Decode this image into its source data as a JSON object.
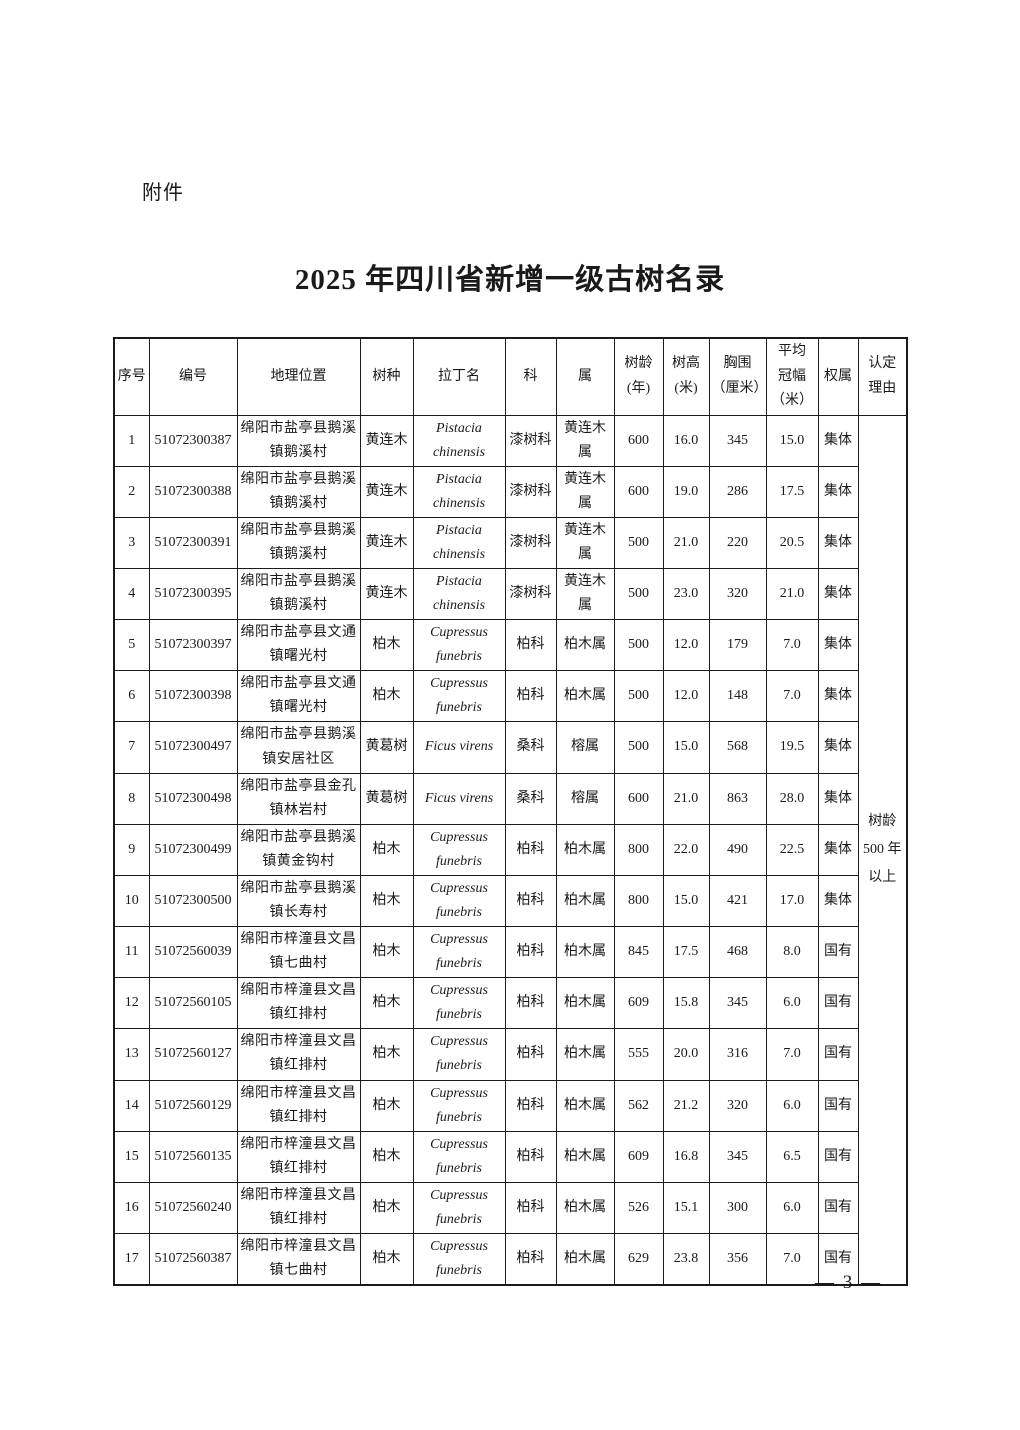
{
  "page": {
    "attachment_label": "附件",
    "title": "2025 年四川省新增一级古树名录",
    "page_number": "— 3 —"
  },
  "table": {
    "headers": {
      "seq": "序号",
      "code": "编号",
      "location": "地理位置",
      "species": "树种",
      "latin": "拉丁名",
      "family": "科",
      "genus": "属",
      "age": "树龄\n(年)",
      "height": "树高\n(米)",
      "girth": "胸围\n（厘米）",
      "crown": "平均\n冠幅\n（米）",
      "ownership": "权属",
      "reason": "认定\n理由"
    },
    "reason_merged": "树龄\n500 年\n以上",
    "rows": [
      {
        "seq": "1",
        "code": "51072300387",
        "location": "绵阳市盐亭县鹅溪镇鹅溪村",
        "species": "黄连木",
        "latin": "Pistacia chinensis",
        "family": "漆树科",
        "genus": "黄连木属",
        "age": "600",
        "height": "16.0",
        "girth": "345",
        "crown": "15.0",
        "ownership": "集体"
      },
      {
        "seq": "2",
        "code": "51072300388",
        "location": "绵阳市盐亭县鹅溪镇鹅溪村",
        "species": "黄连木",
        "latin": "Pistacia chinensis",
        "family": "漆树科",
        "genus": "黄连木属",
        "age": "600",
        "height": "19.0",
        "girth": "286",
        "crown": "17.5",
        "ownership": "集体"
      },
      {
        "seq": "3",
        "code": "51072300391",
        "location": "绵阳市盐亭县鹅溪镇鹅溪村",
        "species": "黄连木",
        "latin": "Pistacia chinensis",
        "family": "漆树科",
        "genus": "黄连木属",
        "age": "500",
        "height": "21.0",
        "girth": "220",
        "crown": "20.5",
        "ownership": "集体"
      },
      {
        "seq": "4",
        "code": "51072300395",
        "location": "绵阳市盐亭县鹅溪镇鹅溪村",
        "species": "黄连木",
        "latin": "Pistacia chinensis",
        "family": "漆树科",
        "genus": "黄连木属",
        "age": "500",
        "height": "23.0",
        "girth": "320",
        "crown": "21.0",
        "ownership": "集体"
      },
      {
        "seq": "5",
        "code": "51072300397",
        "location": "绵阳市盐亭县文通镇曙光村",
        "species": "柏木",
        "latin": "Cupressus funebris",
        "family": "柏科",
        "genus": "柏木属",
        "age": "500",
        "height": "12.0",
        "girth": "179",
        "crown": "7.0",
        "ownership": "集体"
      },
      {
        "seq": "6",
        "code": "51072300398",
        "location": "绵阳市盐亭县文通镇曙光村",
        "species": "柏木",
        "latin": "Cupressus funebris",
        "family": "柏科",
        "genus": "柏木属",
        "age": "500",
        "height": "12.0",
        "girth": "148",
        "crown": "7.0",
        "ownership": "集体"
      },
      {
        "seq": "7",
        "code": "51072300497",
        "location": "绵阳市盐亭县鹅溪镇安居社区",
        "species": "黄葛树",
        "latin": "Ficus virens",
        "family": "桑科",
        "genus": "榕属",
        "age": "500",
        "height": "15.0",
        "girth": "568",
        "crown": "19.5",
        "ownership": "集体"
      },
      {
        "seq": "8",
        "code": "51072300498",
        "location": "绵阳市盐亭县金孔镇林岩村",
        "species": "黄葛树",
        "latin": "Ficus virens",
        "family": "桑科",
        "genus": "榕属",
        "age": "600",
        "height": "21.0",
        "girth": "863",
        "crown": "28.0",
        "ownership": "集体"
      },
      {
        "seq": "9",
        "code": "51072300499",
        "location": "绵阳市盐亭县鹅溪镇黄金钩村",
        "species": "柏木",
        "latin": "Cupressus funebris",
        "family": "柏科",
        "genus": "柏木属",
        "age": "800",
        "height": "22.0",
        "girth": "490",
        "crown": "22.5",
        "ownership": "集体"
      },
      {
        "seq": "10",
        "code": "51072300500",
        "location": "绵阳市盐亭县鹅溪镇长寿村",
        "species": "柏木",
        "latin": "Cupressus funebris",
        "family": "柏科",
        "genus": "柏木属",
        "age": "800",
        "height": "15.0",
        "girth": "421",
        "crown": "17.0",
        "ownership": "集体"
      },
      {
        "seq": "11",
        "code": "51072560039",
        "location": "绵阳市梓潼县文昌镇七曲村",
        "species": "柏木",
        "latin": "Cupressus funebris",
        "family": "柏科",
        "genus": "柏木属",
        "age": "845",
        "height": "17.5",
        "girth": "468",
        "crown": "8.0",
        "ownership": "国有"
      },
      {
        "seq": "12",
        "code": "51072560105",
        "location": "绵阳市梓潼县文昌镇红排村",
        "species": "柏木",
        "latin": "Cupressus funebris",
        "family": "柏科",
        "genus": "柏木属",
        "age": "609",
        "height": "15.8",
        "girth": "345",
        "crown": "6.0",
        "ownership": "国有"
      },
      {
        "seq": "13",
        "code": "51072560127",
        "location": "绵阳市梓潼县文昌镇红排村",
        "species": "柏木",
        "latin": "Cupressus funebris",
        "family": "柏科",
        "genus": "柏木属",
        "age": "555",
        "height": "20.0",
        "girth": "316",
        "crown": "7.0",
        "ownership": "国有"
      },
      {
        "seq": "14",
        "code": "51072560129",
        "location": "绵阳市梓潼县文昌镇红排村",
        "species": "柏木",
        "latin": "Cupressus funebris",
        "family": "柏科",
        "genus": "柏木属",
        "age": "562",
        "height": "21.2",
        "girth": "320",
        "crown": "6.0",
        "ownership": "国有"
      },
      {
        "seq": "15",
        "code": "51072560135",
        "location": "绵阳市梓潼县文昌镇红排村",
        "species": "柏木",
        "latin": "Cupressus funebris",
        "family": "柏科",
        "genus": "柏木属",
        "age": "609",
        "height": "16.8",
        "girth": "345",
        "crown": "6.5",
        "ownership": "国有"
      },
      {
        "seq": "16",
        "code": "51072560240",
        "location": "绵阳市梓潼县文昌镇红排村",
        "species": "柏木",
        "latin": "Cupressus funebris",
        "family": "柏科",
        "genus": "柏木属",
        "age": "526",
        "height": "15.1",
        "girth": "300",
        "crown": "6.0",
        "ownership": "国有"
      },
      {
        "seq": "17",
        "code": "51072560387",
        "location": "绵阳市梓潼县文昌镇七曲村",
        "species": "柏木",
        "latin": "Cupressus funebris",
        "family": "柏科",
        "genus": "柏木属",
        "age": "629",
        "height": "23.8",
        "girth": "356",
        "crown": "7.0",
        "ownership": "国有"
      }
    ]
  }
}
